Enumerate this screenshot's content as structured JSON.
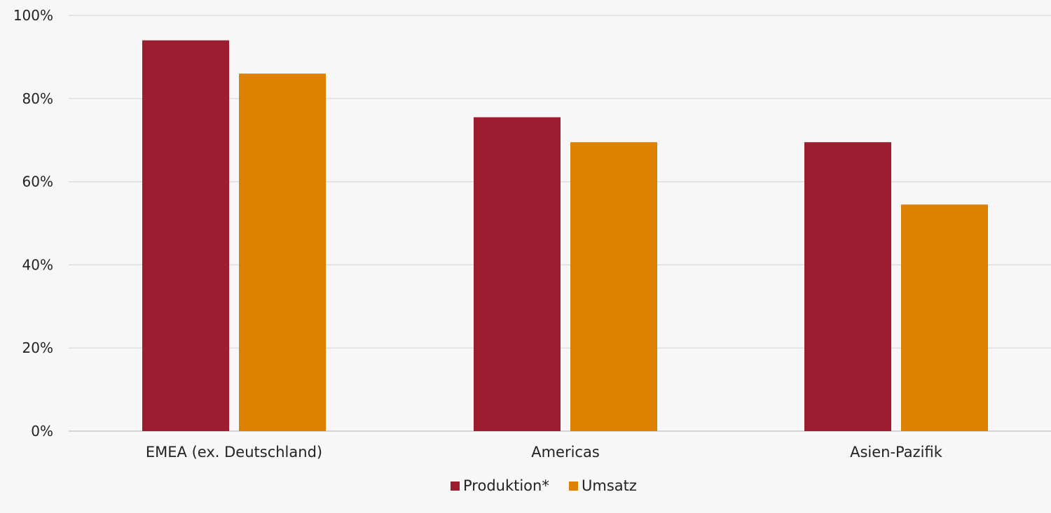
{
  "chart_data": {
    "type": "bar",
    "categories": [
      "EMEA (ex. Deutschland)",
      "Americas",
      "Asien-Pazifik"
    ],
    "series": [
      {
        "name": "Produktion*",
        "color": "#9b1d2f",
        "values": [
          94,
          75.5,
          69.5
        ]
      },
      {
        "name": "Umsatz",
        "color": "#df8100",
        "values": [
          86,
          69.5,
          54.5
        ]
      }
    ],
    "ylim": [
      0,
      100
    ],
    "yticks": [
      0,
      20,
      40,
      60,
      80,
      100
    ],
    "ytick_labels": [
      "0%",
      "20%",
      "40%",
      "60%",
      "80%",
      "100%"
    ],
    "grid": true,
    "legend": "bottom-center",
    "colors": {
      "background": "#f7f7f7",
      "grid": "#d9d9d9",
      "axis": "#bfbfbf"
    }
  }
}
